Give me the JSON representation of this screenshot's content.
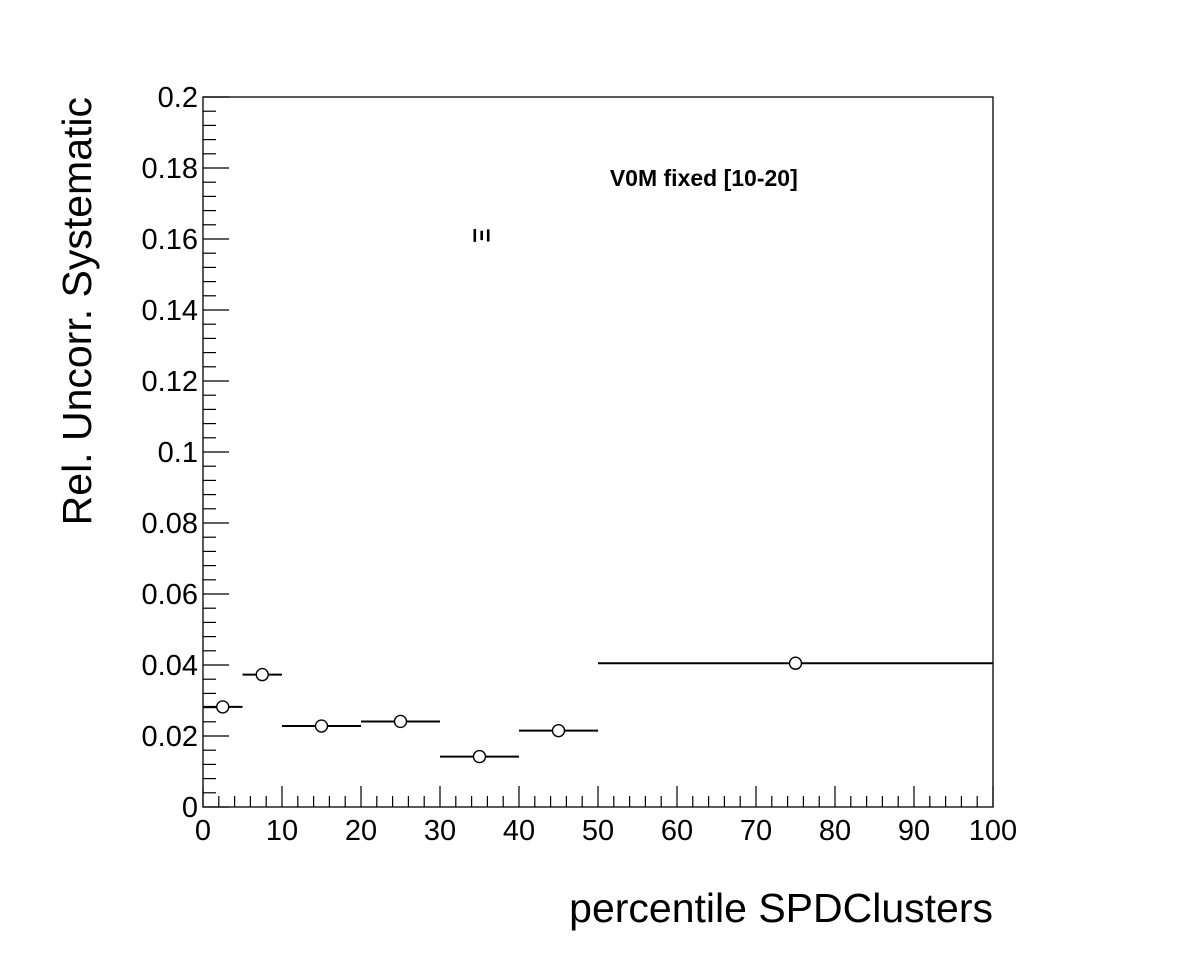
{
  "chart_data": {
    "type": "scatter",
    "title": "",
    "xlabel": "percentile SPDClusters",
    "ylabel": "Rel. Uncorr. Systematic",
    "xlim": [
      0,
      100
    ],
    "ylim": [
      0,
      0.2
    ],
    "x_major_ticks": [
      0,
      10,
      20,
      30,
      40,
      50,
      60,
      70,
      80,
      90,
      100
    ],
    "x_tick_labels": [
      "0",
      "10",
      "20",
      "30",
      "40",
      "50",
      "60",
      "70",
      "80",
      "90",
      "100"
    ],
    "y_major_ticks": [
      0,
      0.02,
      0.04,
      0.06,
      0.08,
      0.1,
      0.12,
      0.14,
      0.16,
      0.18,
      0.2
    ],
    "y_tick_labels": [
      "0",
      "0.02",
      "0.04",
      "0.06",
      "0.08",
      "0.1",
      "0.12",
      "0.14",
      "0.16",
      "0.18",
      "0.2"
    ],
    "grid": false,
    "marker": "open-circle",
    "points": [
      {
        "x": 2.5,
        "xlow": 0,
        "xhigh": 5,
        "y": 0.0282
      },
      {
        "x": 7.5,
        "xlow": 5,
        "xhigh": 10,
        "y": 0.0373
      },
      {
        "x": 15,
        "xlow": 10,
        "xhigh": 20,
        "y": 0.0228
      },
      {
        "x": 25,
        "xlow": 20,
        "xhigh": 30,
        "y": 0.0241
      },
      {
        "x": 35,
        "xlow": 30,
        "xhigh": 40,
        "y": 0.0142
      },
      {
        "x": 45,
        "xlow": 40,
        "xhigh": 50,
        "y": 0.0215
      },
      {
        "x": 75,
        "xlow": 50,
        "xhigh": 100,
        "y": 0.0405
      }
    ],
    "annotations": [
      {
        "text": "V0M fixed [10-20]",
        "x": 51.5,
        "y": 0.175,
        "weight": "bold"
      },
      {
        "text": "Ξ",
        "x": 35,
        "y": 0.161,
        "weight": "bold",
        "rotate": 90
      }
    ]
  }
}
